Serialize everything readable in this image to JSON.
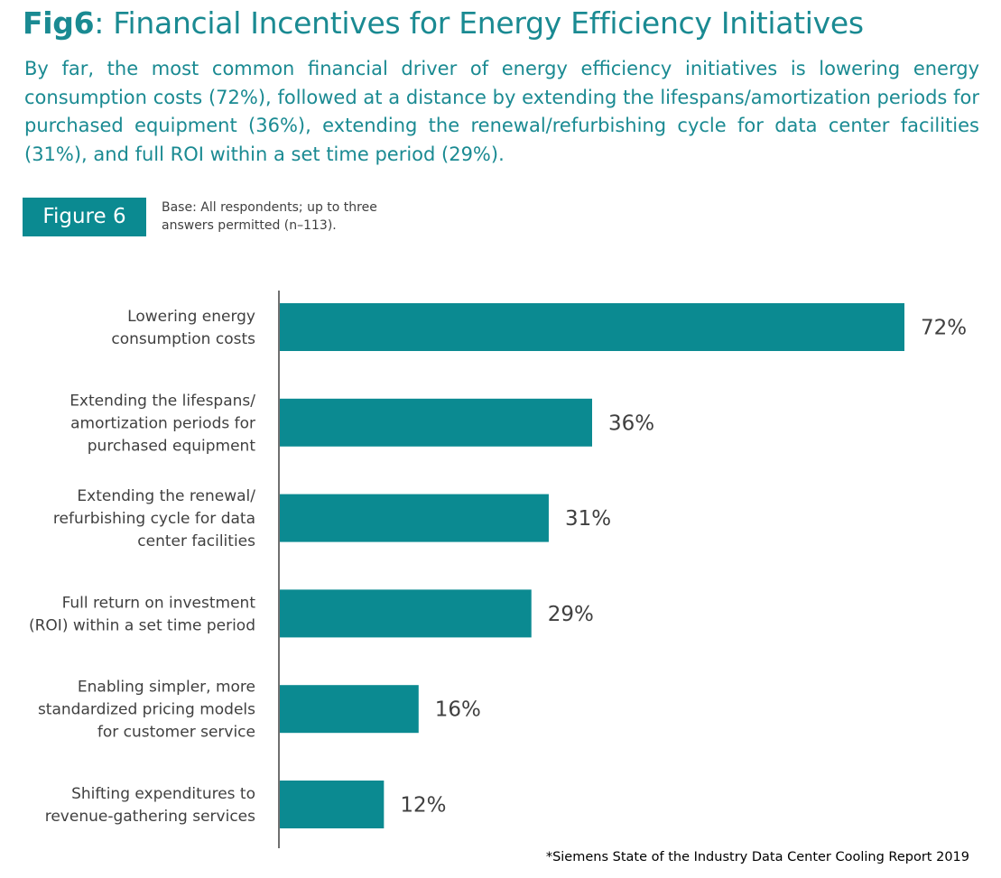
{
  "title": {
    "prefix": "Fig6",
    "text": ": Financial Incentives for Energy Efficiency Initiatives"
  },
  "subtitle": "By far, the most common financial driver of energy efficiency initiatives is lowering energy consumption costs (72%), followed at a distance by extending the lifespans/amortization periods for purchased equipment (36%), extending the renewal/refurbishing cycle for data center facilities (31%), and full ROI within a set time period (29%).",
  "figure_badge": "Figure 6",
  "base_note": "Base: All respondents; up to three answers permitted (n–113).",
  "source": "*Siemens State of the Industry Data Center Cooling Report 2019",
  "colors": {
    "accent": "#1a8a92",
    "bar": "#0b8a91",
    "text": "#404040"
  },
  "chart_data": {
    "type": "bar",
    "orientation": "horizontal",
    "title": "",
    "xlabel": "",
    "ylabel": "",
    "xlim": [
      0,
      72
    ],
    "grid": false,
    "categories": [
      [
        "Lowering energy",
        "consumption costs"
      ],
      [
        "Extending the lifespans/",
        "amortization periods for",
        "purchased equipment"
      ],
      [
        "Extending the renewal/",
        "refurbishing cycle for data",
        "center facilities"
      ],
      [
        "Full return on investment",
        "(ROI) within a set time period"
      ],
      [
        "Enabling simpler, more",
        "standardized pricing models",
        "for customer service"
      ],
      [
        "Shifting expenditures to",
        "revenue-gathering services"
      ]
    ],
    "values": [
      72,
      36,
      31,
      29,
      16,
      12
    ],
    "value_labels": [
      "72%",
      "36%",
      "31%",
      "29%",
      "16%",
      "12%"
    ]
  }
}
